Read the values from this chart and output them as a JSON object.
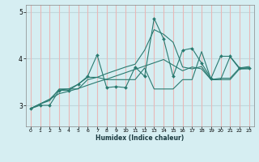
{
  "xlabel": "Humidex (Indice chaleur)",
  "background_color": "#d6eef2",
  "vgrid_color": "#e8b8b8",
  "hgrid_color": "#c0d8dd",
  "line_color": "#2a7a70",
  "xlim": [
    -0.5,
    23.5
  ],
  "ylim": [
    2.55,
    5.15
  ],
  "yticks": [
    3,
    4,
    5
  ],
  "xticks": [
    0,
    1,
    2,
    3,
    4,
    5,
    6,
    7,
    8,
    9,
    10,
    11,
    12,
    13,
    14,
    15,
    16,
    17,
    18,
    19,
    20,
    21,
    22,
    23
  ],
  "series": [
    [
      2.93,
      3.03,
      3.13,
      3.33,
      3.35,
      3.45,
      3.6,
      3.6,
      3.68,
      3.75,
      3.82,
      3.88,
      4.18,
      4.62,
      4.52,
      4.35,
      3.82,
      3.78,
      3.83,
      3.55,
      3.55,
      4.04,
      3.78,
      3.8
    ],
    [
      2.93,
      3.03,
      3.13,
      3.25,
      3.3,
      3.36,
      3.43,
      3.5,
      3.56,
      3.63,
      3.7,
      3.77,
      3.84,
      3.91,
      3.98,
      3.86,
      3.74,
      3.82,
      3.78,
      3.55,
      3.58,
      3.58,
      3.8,
      3.83
    ],
    [
      2.93,
      3.03,
      3.1,
      3.35,
      3.35,
      3.35,
      3.55,
      3.6,
      3.55,
      3.55,
      3.55,
      3.55,
      3.8,
      3.35,
      3.35,
      3.35,
      3.55,
      3.55,
      4.15,
      3.55,
      3.55,
      3.55,
      3.78,
      3.78
    ],
    [
      2.93,
      3.0,
      3.0,
      3.32,
      3.32,
      3.45,
      3.62,
      4.08,
      3.38,
      3.4,
      3.38,
      3.82,
      3.62,
      4.86,
      4.42,
      3.62,
      4.18,
      4.22,
      3.9,
      3.58,
      4.05,
      4.05,
      3.8,
      3.8
    ]
  ]
}
